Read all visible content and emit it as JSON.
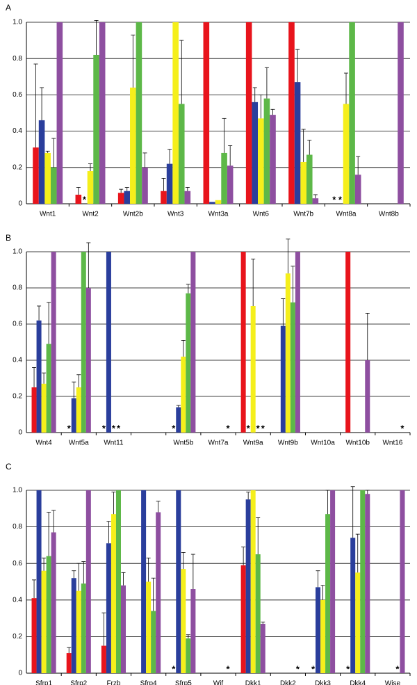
{
  "chart_data": [
    {
      "type": "bar",
      "panel": "A",
      "categories": [
        "Wnt1",
        "Wnt2",
        "Wnt2b",
        "Wnt3",
        "Wnt3a",
        "Wnt6",
        "Wnt7b",
        "Wnt8a",
        "Wnt8b"
      ],
      "ylim": [
        0,
        1
      ],
      "yticks": [
        0,
        0.2,
        0.4,
        0.6,
        0.8,
        {
          "value": 1,
          "label": "1.0"
        }
      ],
      "grid": true,
      "series": [
        {
          "color": "#e8141c",
          "values": [
            0.31,
            0.05,
            0.06,
            0.07,
            1,
            1,
            1,
            null,
            null
          ],
          "errors": [
            0.46,
            0.04,
            0.02,
            0.07,
            null,
            null,
            null,
            null,
            null
          ],
          "value_labels": [
            null,
            null,
            null,
            null,
            null,
            null,
            null,
            "*",
            null
          ]
        },
        {
          "color": "#2a3e9c",
          "values": [
            0.46,
            null,
            0.07,
            0.22,
            0.01,
            0.56,
            0.67,
            null,
            null
          ],
          "errors": [
            0.18,
            null,
            0.02,
            0.08,
            null,
            0.08,
            0.18,
            null,
            null
          ],
          "value_labels": [
            null,
            "*",
            null,
            null,
            null,
            null,
            null,
            "*",
            null
          ]
        },
        {
          "color": "#f5ef1b",
          "values": [
            0.28,
            0.18,
            0.64,
            1,
            0.02,
            0.47,
            0.23,
            0.55,
            null
          ],
          "errors": [
            0.01,
            0.04,
            0.29,
            null,
            null,
            0.13,
            0.18,
            0.17,
            null
          ],
          "value_labels": [
            null,
            null,
            null,
            null,
            null,
            null,
            null,
            null,
            null
          ]
        },
        {
          "color": "#5db848",
          "values": [
            0.2,
            0.82,
            1,
            0.55,
            0.28,
            0.58,
            0.27,
            1,
            null
          ],
          "errors": [
            0.16,
            0.19,
            null,
            0.35,
            0.19,
            0.17,
            0.08,
            null,
            null
          ],
          "value_labels": [
            null,
            null,
            null,
            null,
            null,
            null,
            null,
            null,
            null
          ]
        },
        {
          "color": "#8e4fa0",
          "values": [
            1,
            1,
            0.2,
            0.07,
            0.21,
            0.49,
            0.03,
            0.16,
            1
          ],
          "errors": [
            null,
            null,
            0.08,
            0.02,
            0.11,
            0.03,
            0.02,
            0.1,
            null
          ],
          "value_labels": [
            null,
            null,
            null,
            null,
            null,
            null,
            null,
            null,
            null
          ]
        }
      ]
    },
    {
      "type": "bar",
      "panel": "B",
      "categories": [
        "Wnt4",
        "Wnt5a",
        "Wnt11",
        null,
        "Wnt5b",
        "Wnt7a",
        "Wnt9a",
        "Wnt9b",
        "Wnt10a",
        "Wnt10b",
        "Wnt16"
      ],
      "ylim": [
        0,
        1
      ],
      "yticks": [
        0,
        0.2,
        0.4,
        0.6,
        0.8,
        {
          "value": 1,
          "label": "1.0"
        }
      ],
      "grid": true,
      "series": [
        {
          "color": "#e8141c",
          "values": [
            0.25,
            null,
            null,
            null,
            null,
            null,
            1,
            null,
            null,
            1,
            null
          ],
          "errors": [
            0.11,
            null,
            null,
            null,
            null,
            null,
            null,
            null,
            null,
            null,
            null
          ],
          "value_labels": [
            null,
            "*",
            "*",
            null,
            "*",
            null,
            null,
            null,
            null,
            null,
            null
          ]
        },
        {
          "color": "#2a3e9c",
          "values": [
            0.62,
            0.19,
            1,
            null,
            0.14,
            null,
            null,
            0.59,
            null,
            null,
            null
          ],
          "errors": [
            0.08,
            0.09,
            null,
            null,
            0.01,
            null,
            null,
            0.15,
            null,
            null,
            null
          ],
          "value_labels": [
            null,
            null,
            null,
            null,
            null,
            null,
            "*",
            null,
            null,
            null,
            null
          ]
        },
        {
          "color": "#f5ef1b",
          "values": [
            0.27,
            0.25,
            null,
            null,
            0.42,
            null,
            0.7,
            0.88,
            null,
            null,
            null
          ],
          "errors": [
            0.06,
            0.07,
            null,
            null,
            0.09,
            null,
            0.26,
            0.19,
            null,
            null,
            null
          ],
          "value_labels": [
            null,
            null,
            "*",
            null,
            null,
            null,
            null,
            null,
            null,
            null,
            null
          ]
        },
        {
          "color": "#5db848",
          "values": [
            0.49,
            1,
            null,
            null,
            0.77,
            null,
            null,
            0.72,
            null,
            null,
            null
          ],
          "errors": [
            0.23,
            null,
            null,
            null,
            0.05,
            null,
            null,
            0.2,
            null,
            null,
            null
          ],
          "value_labels": [
            null,
            null,
            "*",
            null,
            null,
            null,
            "*",
            null,
            null,
            null,
            null
          ]
        },
        {
          "color": "#8e4fa0",
          "values": [
            1,
            0.8,
            null,
            null,
            1,
            null,
            null,
            1,
            null,
            0.4,
            null
          ],
          "errors": [
            null,
            0.25,
            null,
            null,
            null,
            null,
            null,
            null,
            null,
            0.26,
            null
          ],
          "value_labels": [
            null,
            null,
            null,
            null,
            null,
            "*",
            "*",
            null,
            null,
            null,
            "*"
          ]
        }
      ]
    },
    {
      "type": "bar",
      "panel": "C",
      "categories": [
        "Sfrp1",
        "Sfrp2",
        "Frzb",
        "Sfrp4",
        "Sfrp5",
        "Wif",
        "Dkk1",
        "Dkk2",
        "Dkk3",
        "Dkk4",
        "Wise"
      ],
      "ylim": [
        0,
        1
      ],
      "yticks": [
        0,
        0.2,
        0.4,
        0.6,
        0.8,
        {
          "value": 1,
          "label": "1.0"
        }
      ],
      "grid": true,
      "series": [
        {
          "color": "#e8141c",
          "values": [
            0.41,
            0.11,
            0.15,
            null,
            null,
            null,
            0.59,
            null,
            null,
            null,
            null
          ],
          "errors": [
            0.1,
            0.03,
            0.18,
            null,
            null,
            null,
            0.1,
            null,
            null,
            null,
            null
          ],
          "value_labels": [
            null,
            null,
            null,
            null,
            "*",
            null,
            null,
            null,
            "*",
            "*",
            null
          ]
        },
        {
          "color": "#2a3e9c",
          "values": [
            1,
            0.52,
            0.71,
            1,
            1,
            null,
            0.95,
            null,
            0.47,
            0.74,
            null
          ],
          "errors": [
            null,
            0.04,
            0.12,
            null,
            null,
            null,
            0.04,
            null,
            0.09,
            0.28,
            null
          ],
          "value_labels": [
            null,
            null,
            null,
            null,
            null,
            null,
            null,
            null,
            null,
            null,
            null
          ]
        },
        {
          "color": "#f5ef1b",
          "values": [
            0.56,
            0.45,
            0.87,
            0.5,
            0.57,
            null,
            1,
            null,
            0.4,
            0.55,
            null
          ],
          "errors": [
            0.07,
            0.15,
            0.12,
            0.13,
            0.09,
            null,
            null,
            null,
            0.08,
            0.21,
            null
          ],
          "value_labels": [
            null,
            null,
            null,
            null,
            null,
            null,
            null,
            null,
            null,
            null,
            null
          ]
        },
        {
          "color": "#5db848",
          "values": [
            0.64,
            0.49,
            1,
            0.34,
            0.19,
            null,
            0.65,
            null,
            0.87,
            1,
            null
          ],
          "errors": [
            0.24,
            0.12,
            null,
            0.18,
            0.02,
            null,
            0.2,
            null,
            0.13,
            null,
            null
          ],
          "value_labels": [
            null,
            null,
            null,
            null,
            null,
            null,
            null,
            null,
            null,
            null,
            "*"
          ]
        },
        {
          "color": "#8e4fa0",
          "values": [
            0.77,
            1,
            0.48,
            0.88,
            0.46,
            null,
            0.27,
            null,
            1,
            0.98,
            1
          ],
          "errors": [
            0.12,
            null,
            0.07,
            0.06,
            0.19,
            null,
            0.01,
            null,
            null,
            0.02,
            null
          ],
          "value_labels": [
            null,
            null,
            null,
            null,
            null,
            "*",
            null,
            "*",
            null,
            null,
            null
          ]
        }
      ]
    }
  ]
}
